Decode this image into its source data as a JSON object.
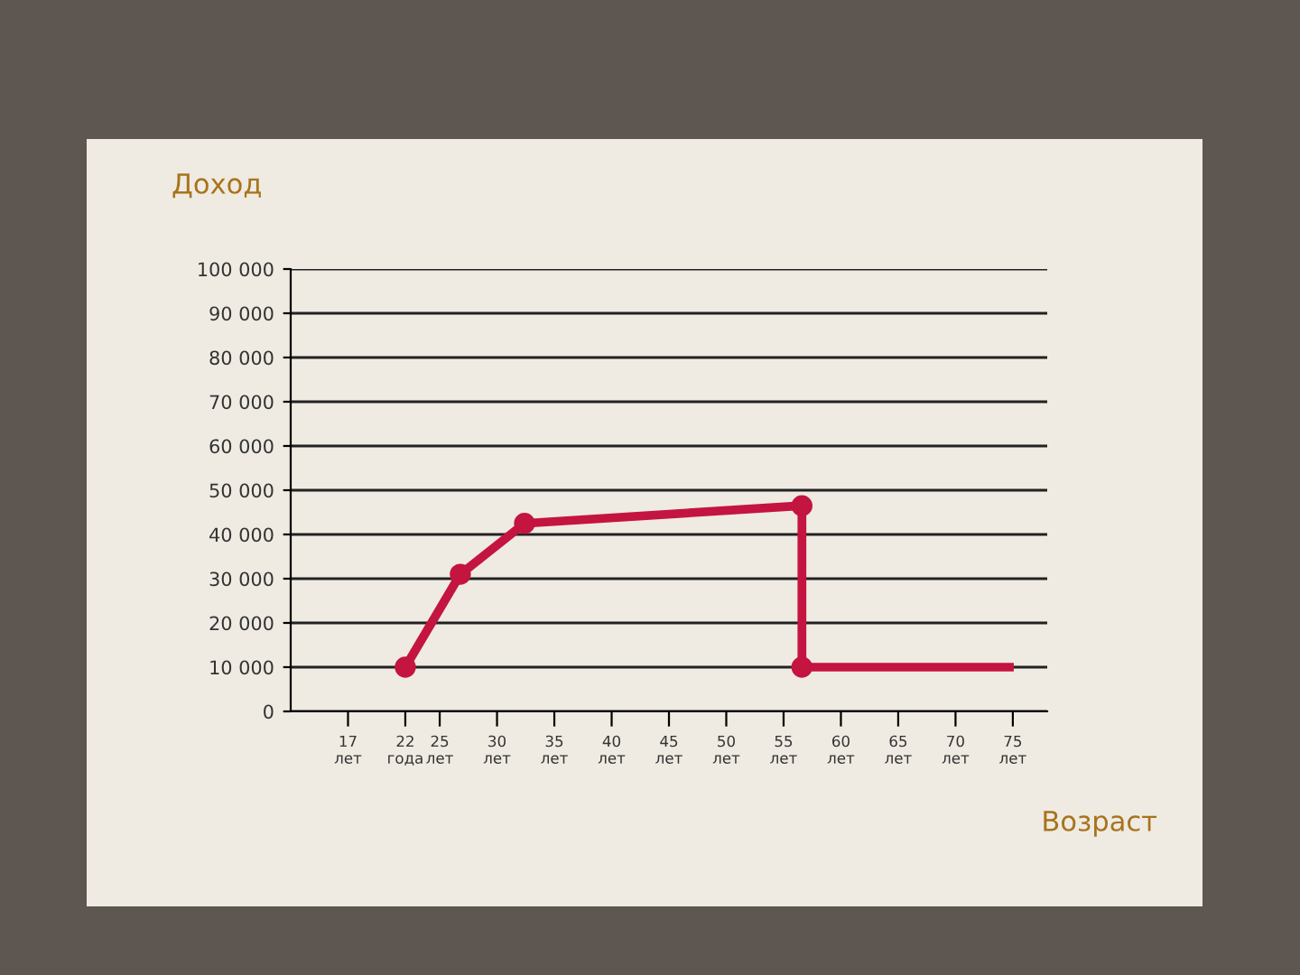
{
  "chart_data": {
    "type": "line",
    "title": "Доход",
    "xlabel": "Возраст",
    "series": [
      {
        "color": "#c41440",
        "marker": "none",
        "x": [
          22,
          26.8,
          32.4,
          56.6,
          56.6,
          74.7
        ],
        "values": [
          10000,
          31000,
          42500,
          46500,
          10000,
          10000
        ]
      },
      {
        "type": "scatter",
        "color": "#c41440",
        "marker": "circle",
        "x": [
          22,
          26.8,
          32.4,
          56.6,
          56.6
        ],
        "values": [
          10000,
          31000,
          42500,
          46500,
          10000
        ]
      }
    ],
    "xlim": [
      12,
      78
    ],
    "ylim": [
      0,
      100000
    ],
    "xticks": [
      {
        "value": 17,
        "label": "17\nлет"
      },
      {
        "value": 22,
        "label": "22\nгода"
      },
      {
        "value": 25,
        "label": "25\nлет"
      },
      {
        "value": 30,
        "label": "30\nлет"
      },
      {
        "value": 35,
        "label": "35\nлет"
      },
      {
        "value": 40,
        "label": "40\nлет"
      },
      {
        "value": 45,
        "label": "45\nлет"
      },
      {
        "value": 50,
        "label": "50\nлет"
      },
      {
        "value": 55,
        "label": "55\nлет"
      },
      {
        "value": 60,
        "label": "60\nлет"
      },
      {
        "value": 65,
        "label": "65\nлет"
      },
      {
        "value": 70,
        "label": "70\nлет"
      },
      {
        "value": 75,
        "label": "75\nлет"
      }
    ],
    "yticks": [
      0,
      {
        "value": 10000,
        "label": "10 000"
      },
      {
        "value": 20000,
        "label": "20 000"
      },
      {
        "value": 30000,
        "label": "30 000"
      },
      {
        "value": 40000,
        "label": "40 000"
      },
      {
        "value": 50000,
        "label": "50 000"
      },
      {
        "value": 60000,
        "label": "60 000"
      },
      {
        "value": 70000,
        "label": "70 000"
      },
      {
        "value": 80000,
        "label": "80 000"
      },
      {
        "value": 90000,
        "label": "90 000"
      },
      {
        "value": 100000,
        "label": "100 000"
      }
    ],
    "grid": "y",
    "legend": false
  }
}
